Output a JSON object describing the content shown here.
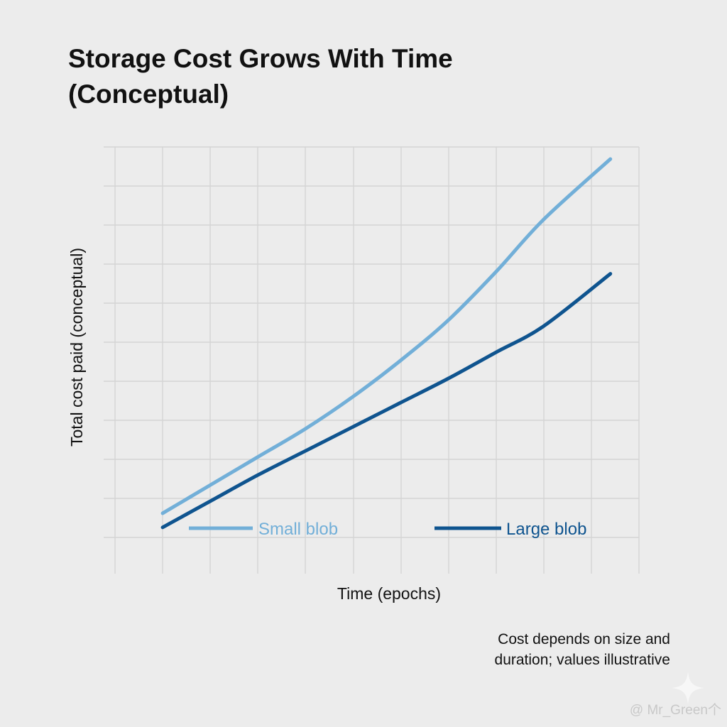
{
  "chart_data": {
    "type": "line",
    "title": [
      "Storage Cost Grows With Time",
      "(Conceptual)"
    ],
    "xlabel": "Time (epochs)",
    "ylabel": "Total cost paid (conceptual)",
    "xlim": [
      -1,
      10
    ],
    "ylim": [
      0,
      10.6
    ],
    "grid": true,
    "x": [
      0,
      1,
      2,
      3,
      4,
      5,
      6,
      7,
      8,
      9.4
    ],
    "series": [
      {
        "name": "Small blob",
        "color": "#72afd8",
        "values": [
          1.5,
          2.2,
          2.9,
          3.6,
          4.4,
          5.3,
          6.3,
          7.5,
          8.8,
          10.3
        ]
      },
      {
        "name": "Large blob",
        "color": "#0f548f",
        "values": [
          1.15,
          1.8,
          2.45,
          3.05,
          3.65,
          4.25,
          4.85,
          5.5,
          6.15,
          7.45
        ]
      }
    ],
    "legend_position": "bottom-inside"
  },
  "annotation": [
    "Cost depends on size and",
    "duration; values illustrative"
  ],
  "watermark": "@ Mr_Green个",
  "colors": {
    "background": "#ececec",
    "grid": "#d4d4d4"
  }
}
